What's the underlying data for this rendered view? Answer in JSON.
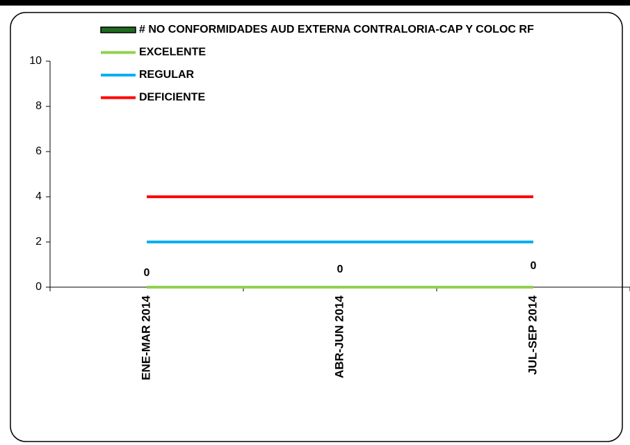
{
  "chart_data": {
    "type": "bar",
    "categories": [
      "ENE-MAR 2014",
      "ABR-JUN 2014",
      "JUL-SEP 2014"
    ],
    "series": [
      {
        "name": "# NO CONFORMIDADES AUD EXTERNA CONTRALORIA-CAP Y COLOC RF",
        "type": "bar",
        "color": "#1e6b1e",
        "values": [
          0,
          0,
          0
        ]
      },
      {
        "name": "EXCELENTE",
        "type": "line",
        "color": "#92d050",
        "values": [
          0,
          0,
          0
        ]
      },
      {
        "name": "REGULAR",
        "type": "line",
        "color": "#00b0f0",
        "values": [
          2,
          2,
          2
        ]
      },
      {
        "name": "DEFICIENTE",
        "type": "line",
        "color": "#ff0000",
        "values": [
          4,
          4,
          4
        ]
      }
    ],
    "ylim": [
      0,
      10
    ],
    "yticks": [
      0,
      2,
      4,
      6,
      8,
      10
    ],
    "grid": false,
    "legend": "top"
  }
}
